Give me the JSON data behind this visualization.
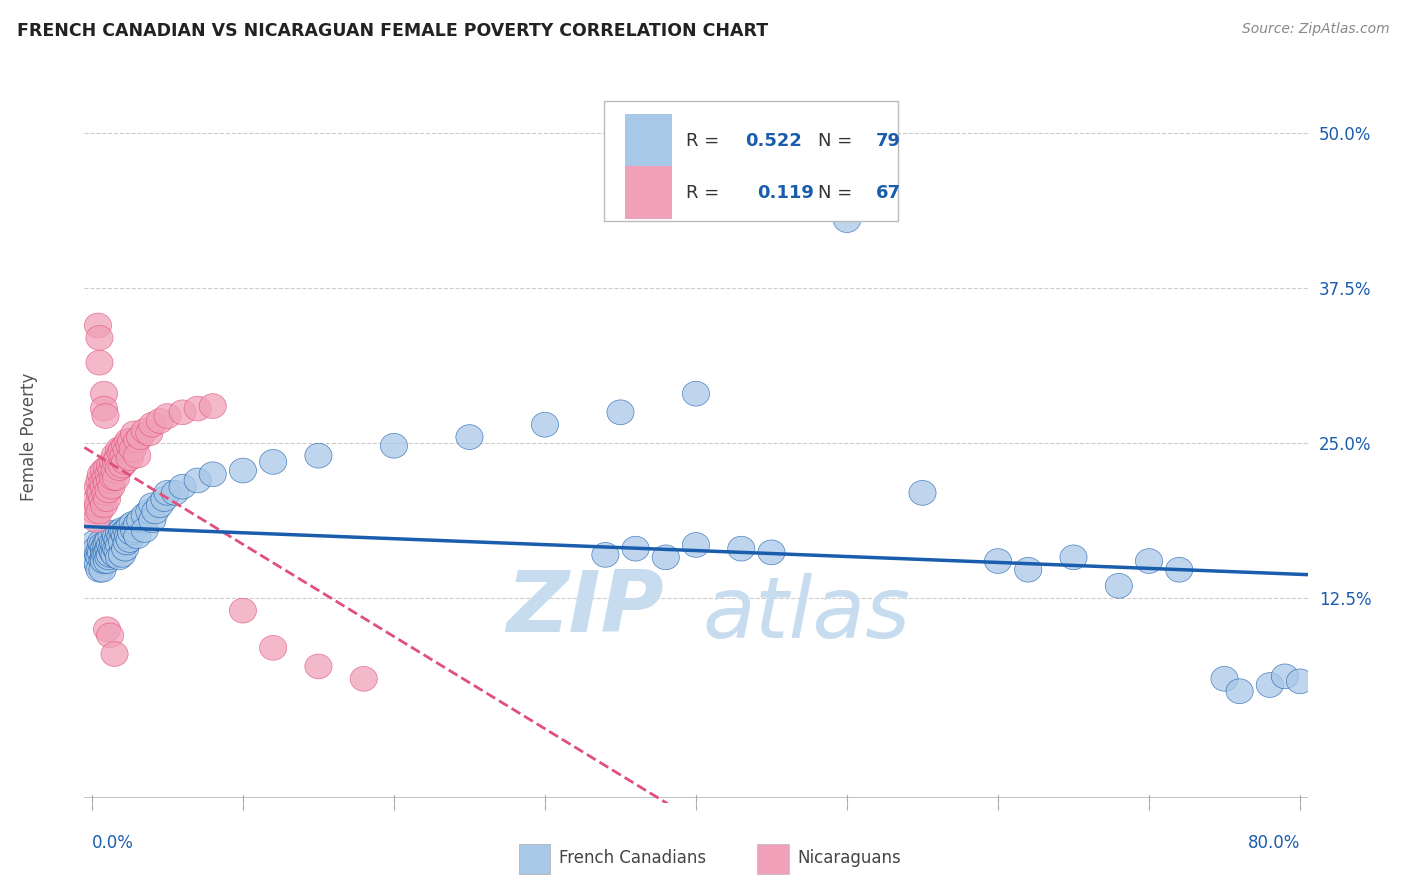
{
  "title": "FRENCH CANADIAN VS NICARAGUAN FEMALE POVERTY CORRELATION CHART",
  "source": "Source: ZipAtlas.com",
  "ylabel": "Female Poverty",
  "ytick_labels": [
    "12.5%",
    "25.0%",
    "37.5%",
    "50.0%"
  ],
  "ytick_values": [
    0.125,
    0.25,
    0.375,
    0.5
  ],
  "xlim": [
    -0.005,
    0.805
  ],
  "ylim": [
    -0.04,
    0.55
  ],
  "blue_color": "#A8C8E8",
  "pink_color": "#F0A0B8",
  "blue_line_color": "#1A5DAD",
  "pink_line_color": "#E0507A",
  "background_color": "#FFFFFF",
  "watermark_zip_color": "#C8DCF0",
  "watermark_atlas_color": "#C8DCF0",
  "french_canadians": [
    [
      0.002,
      0.17
    ],
    [
      0.003,
      0.165
    ],
    [
      0.003,
      0.155
    ],
    [
      0.004,
      0.16
    ],
    [
      0.004,
      0.152
    ],
    [
      0.005,
      0.163
    ],
    [
      0.005,
      0.158
    ],
    [
      0.005,
      0.148
    ],
    [
      0.006,
      0.17
    ],
    [
      0.006,
      0.162
    ],
    [
      0.007,
      0.168
    ],
    [
      0.007,
      0.155
    ],
    [
      0.007,
      0.148
    ],
    [
      0.008,
      0.165
    ],
    [
      0.008,
      0.16
    ],
    [
      0.008,
      0.155
    ],
    [
      0.009,
      0.168
    ],
    [
      0.009,
      0.16
    ],
    [
      0.01,
      0.17
    ],
    [
      0.01,
      0.162
    ],
    [
      0.01,
      0.155
    ],
    [
      0.011,
      0.172
    ],
    [
      0.011,
      0.165
    ],
    [
      0.011,
      0.158
    ],
    [
      0.012,
      0.168
    ],
    [
      0.012,
      0.16
    ],
    [
      0.013,
      0.175
    ],
    [
      0.013,
      0.165
    ],
    [
      0.014,
      0.17
    ],
    [
      0.014,
      0.162
    ],
    [
      0.015,
      0.178
    ],
    [
      0.015,
      0.168
    ],
    [
      0.015,
      0.16
    ],
    [
      0.016,
      0.175
    ],
    [
      0.016,
      0.165
    ],
    [
      0.017,
      0.172
    ],
    [
      0.017,
      0.163
    ],
    [
      0.018,
      0.178
    ],
    [
      0.018,
      0.168
    ],
    [
      0.018,
      0.158
    ],
    [
      0.019,
      0.175
    ],
    [
      0.02,
      0.18
    ],
    [
      0.02,
      0.17
    ],
    [
      0.02,
      0.16
    ],
    [
      0.021,
      0.178
    ],
    [
      0.022,
      0.175
    ],
    [
      0.022,
      0.165
    ],
    [
      0.023,
      0.18
    ],
    [
      0.023,
      0.17
    ],
    [
      0.024,
      0.175
    ],
    [
      0.025,
      0.183
    ],
    [
      0.025,
      0.172
    ],
    [
      0.026,
      0.178
    ],
    [
      0.027,
      0.185
    ],
    [
      0.028,
      0.18
    ],
    [
      0.03,
      0.185
    ],
    [
      0.03,
      0.175
    ],
    [
      0.032,
      0.188
    ],
    [
      0.035,
      0.192
    ],
    [
      0.035,
      0.18
    ],
    [
      0.038,
      0.195
    ],
    [
      0.04,
      0.2
    ],
    [
      0.04,
      0.188
    ],
    [
      0.042,
      0.195
    ],
    [
      0.045,
      0.2
    ],
    [
      0.048,
      0.205
    ],
    [
      0.05,
      0.21
    ],
    [
      0.055,
      0.21
    ],
    [
      0.06,
      0.215
    ],
    [
      0.07,
      0.22
    ],
    [
      0.08,
      0.225
    ],
    [
      0.1,
      0.228
    ],
    [
      0.12,
      0.235
    ],
    [
      0.15,
      0.24
    ],
    [
      0.2,
      0.248
    ],
    [
      0.25,
      0.255
    ],
    [
      0.3,
      0.265
    ],
    [
      0.35,
      0.275
    ],
    [
      0.4,
      0.29
    ],
    [
      0.34,
      0.16
    ],
    [
      0.36,
      0.165
    ],
    [
      0.38,
      0.158
    ],
    [
      0.4,
      0.168
    ],
    [
      0.43,
      0.165
    ],
    [
      0.45,
      0.162
    ],
    [
      0.5,
      0.43
    ],
    [
      0.55,
      0.21
    ],
    [
      0.6,
      0.155
    ],
    [
      0.62,
      0.148
    ],
    [
      0.65,
      0.158
    ],
    [
      0.68,
      0.135
    ],
    [
      0.7,
      0.155
    ],
    [
      0.72,
      0.148
    ],
    [
      0.75,
      0.06
    ],
    [
      0.76,
      0.05
    ],
    [
      0.78,
      0.055
    ],
    [
      0.79,
      0.062
    ],
    [
      0.8,
      0.058
    ]
  ],
  "nicaraguans": [
    [
      0.002,
      0.195
    ],
    [
      0.003,
      0.205
    ],
    [
      0.003,
      0.188
    ],
    [
      0.004,
      0.215
    ],
    [
      0.004,
      0.2
    ],
    [
      0.005,
      0.22
    ],
    [
      0.005,
      0.21
    ],
    [
      0.005,
      0.195
    ],
    [
      0.006,
      0.225
    ],
    [
      0.006,
      0.21
    ],
    [
      0.007,
      0.218
    ],
    [
      0.007,
      0.205
    ],
    [
      0.008,
      0.228
    ],
    [
      0.008,
      0.215
    ],
    [
      0.008,
      0.2
    ],
    [
      0.009,
      0.222
    ],
    [
      0.009,
      0.21
    ],
    [
      0.01,
      0.23
    ],
    [
      0.01,
      0.218
    ],
    [
      0.01,
      0.205
    ],
    [
      0.011,
      0.225
    ],
    [
      0.011,
      0.212
    ],
    [
      0.012,
      0.232
    ],
    [
      0.012,
      0.22
    ],
    [
      0.013,
      0.228
    ],
    [
      0.013,
      0.215
    ],
    [
      0.014,
      0.235
    ],
    [
      0.014,
      0.222
    ],
    [
      0.015,
      0.24
    ],
    [
      0.015,
      0.228
    ],
    [
      0.016,
      0.235
    ],
    [
      0.016,
      0.222
    ],
    [
      0.017,
      0.238
    ],
    [
      0.018,
      0.245
    ],
    [
      0.018,
      0.23
    ],
    [
      0.019,
      0.242
    ],
    [
      0.02,
      0.245
    ],
    [
      0.02,
      0.232
    ],
    [
      0.021,
      0.24
    ],
    [
      0.022,
      0.248
    ],
    [
      0.022,
      0.235
    ],
    [
      0.023,
      0.245
    ],
    [
      0.024,
      0.252
    ],
    [
      0.025,
      0.248
    ],
    [
      0.025,
      0.238
    ],
    [
      0.026,
      0.252
    ],
    [
      0.027,
      0.245
    ],
    [
      0.028,
      0.258
    ],
    [
      0.03,
      0.252
    ],
    [
      0.03,
      0.24
    ],
    [
      0.032,
      0.255
    ],
    [
      0.035,
      0.26
    ],
    [
      0.038,
      0.258
    ],
    [
      0.04,
      0.265
    ],
    [
      0.045,
      0.268
    ],
    [
      0.05,
      0.272
    ],
    [
      0.06,
      0.275
    ],
    [
      0.07,
      0.278
    ],
    [
      0.08,
      0.28
    ],
    [
      0.004,
      0.345
    ],
    [
      0.005,
      0.335
    ],
    [
      0.005,
      0.315
    ],
    [
      0.008,
      0.29
    ],
    [
      0.008,
      0.278
    ],
    [
      0.009,
      0.272
    ],
    [
      0.01,
      0.1
    ],
    [
      0.012,
      0.095
    ],
    [
      0.015,
      0.08
    ],
    [
      0.1,
      0.115
    ],
    [
      0.12,
      0.085
    ],
    [
      0.15,
      0.07
    ],
    [
      0.18,
      0.06
    ]
  ]
}
